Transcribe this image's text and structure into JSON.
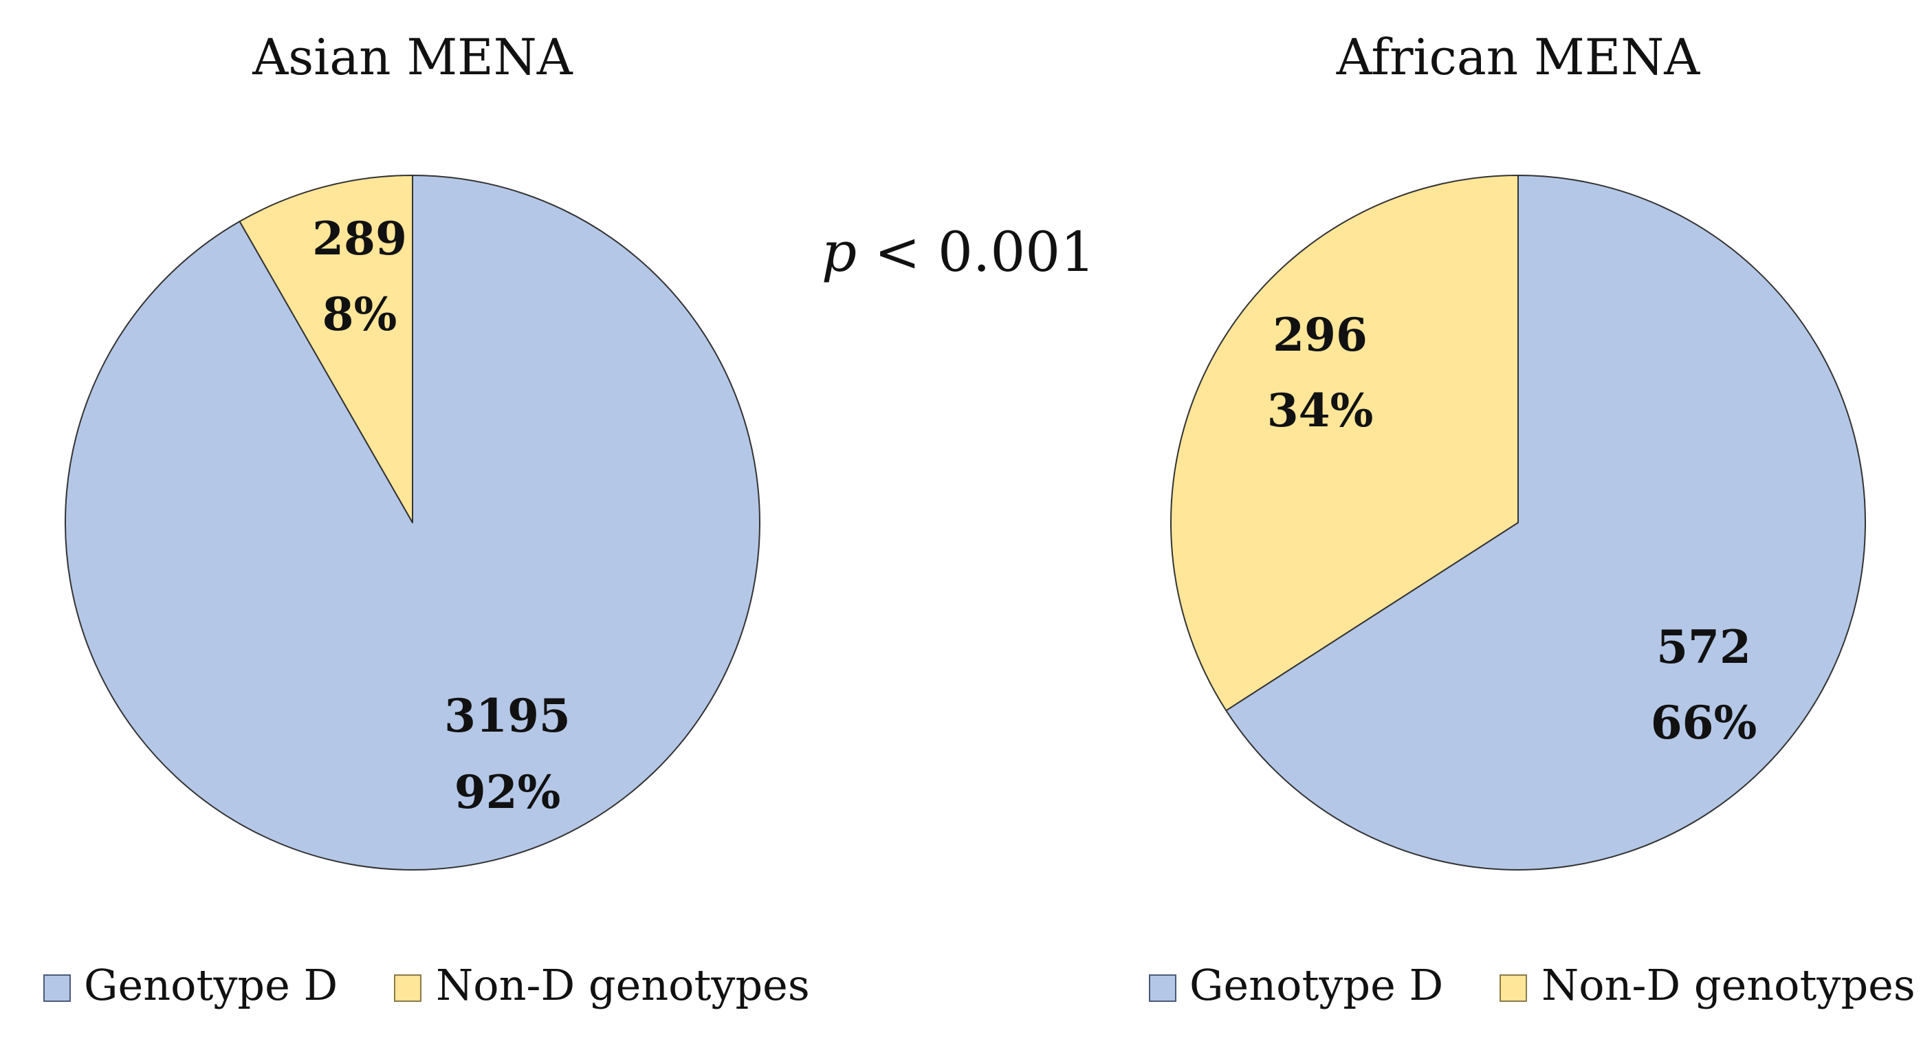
{
  "chart_data": [
    {
      "type": "pie",
      "title": "Asian MENA",
      "slices": [
        {
          "label": "Genotype D",
          "count": "3195",
          "percent": "92%",
          "value": 3195,
          "color": "#b4c7e7"
        },
        {
          "label": "Non-D genotypes",
          "count": "289",
          "percent": "8%",
          "value": 289,
          "color": "#ffe699"
        }
      ],
      "legend": [
        "Genotype D",
        "Non-D genotypes"
      ],
      "legend_position": "bottom"
    },
    {
      "type": "pie",
      "title": "African MENA",
      "slices": [
        {
          "label": "Genotype D",
          "count": "572",
          "percent": "66%",
          "value": 572,
          "color": "#b4c7e7"
        },
        {
          "label": "Non-D genotypes",
          "count": "296",
          "percent": "34%",
          "value": 296,
          "color": "#ffe699"
        }
      ],
      "legend": [
        "Genotype D",
        "Non-D genotypes"
      ],
      "legend_position": "bottom"
    }
  ],
  "annotation": {
    "p_symbol": "p",
    "p_rest": " < 0.001"
  },
  "colors": {
    "genotype_d": "#b4c7e7",
    "non_d": "#ffe699",
    "outline": "#333333"
  }
}
